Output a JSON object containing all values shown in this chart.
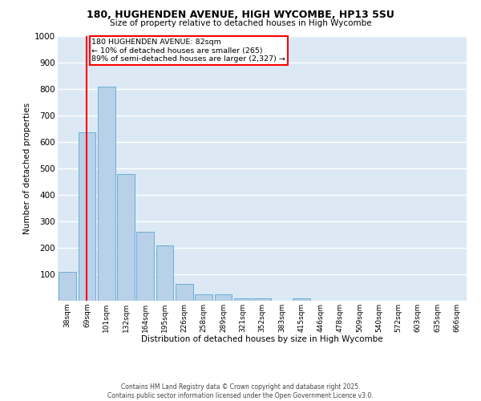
{
  "title1": "180, HUGHENDEN AVENUE, HIGH WYCOMBE, HP13 5SU",
  "title2": "Size of property relative to detached houses in High Wycombe",
  "xlabel": "Distribution of detached houses by size in High Wycombe",
  "ylabel": "Number of detached properties",
  "categories": [
    "38sqm",
    "69sqm",
    "101sqm",
    "132sqm",
    "164sqm",
    "195sqm",
    "226sqm",
    "258sqm",
    "289sqm",
    "321sqm",
    "352sqm",
    "383sqm",
    "415sqm",
    "446sqm",
    "478sqm",
    "509sqm",
    "540sqm",
    "572sqm",
    "603sqm",
    "635sqm",
    "666sqm"
  ],
  "values": [
    110,
    635,
    810,
    480,
    260,
    210,
    65,
    25,
    25,
    10,
    10,
    0,
    10,
    0,
    0,
    0,
    0,
    0,
    0,
    0,
    0
  ],
  "bar_color": "#b8d0e8",
  "bar_edge_color": "#6aaed6",
  "background_color": "#dce9f5",
  "grid_color": "#ffffff",
  "red_line_x": 1.0,
  "annotation_text": "180 HUGHENDEN AVENUE: 82sqm\n← 10% of detached houses are smaller (265)\n89% of semi-detached houses are larger (2,327) →",
  "footer1": "Contains HM Land Registry data © Crown copyright and database right 2025.",
  "footer2": "Contains public sector information licensed under the Open Government Licence v3.0.",
  "ylim": [
    0,
    1000
  ],
  "yticks": [
    0,
    100,
    200,
    300,
    400,
    500,
    600,
    700,
    800,
    900,
    1000
  ]
}
